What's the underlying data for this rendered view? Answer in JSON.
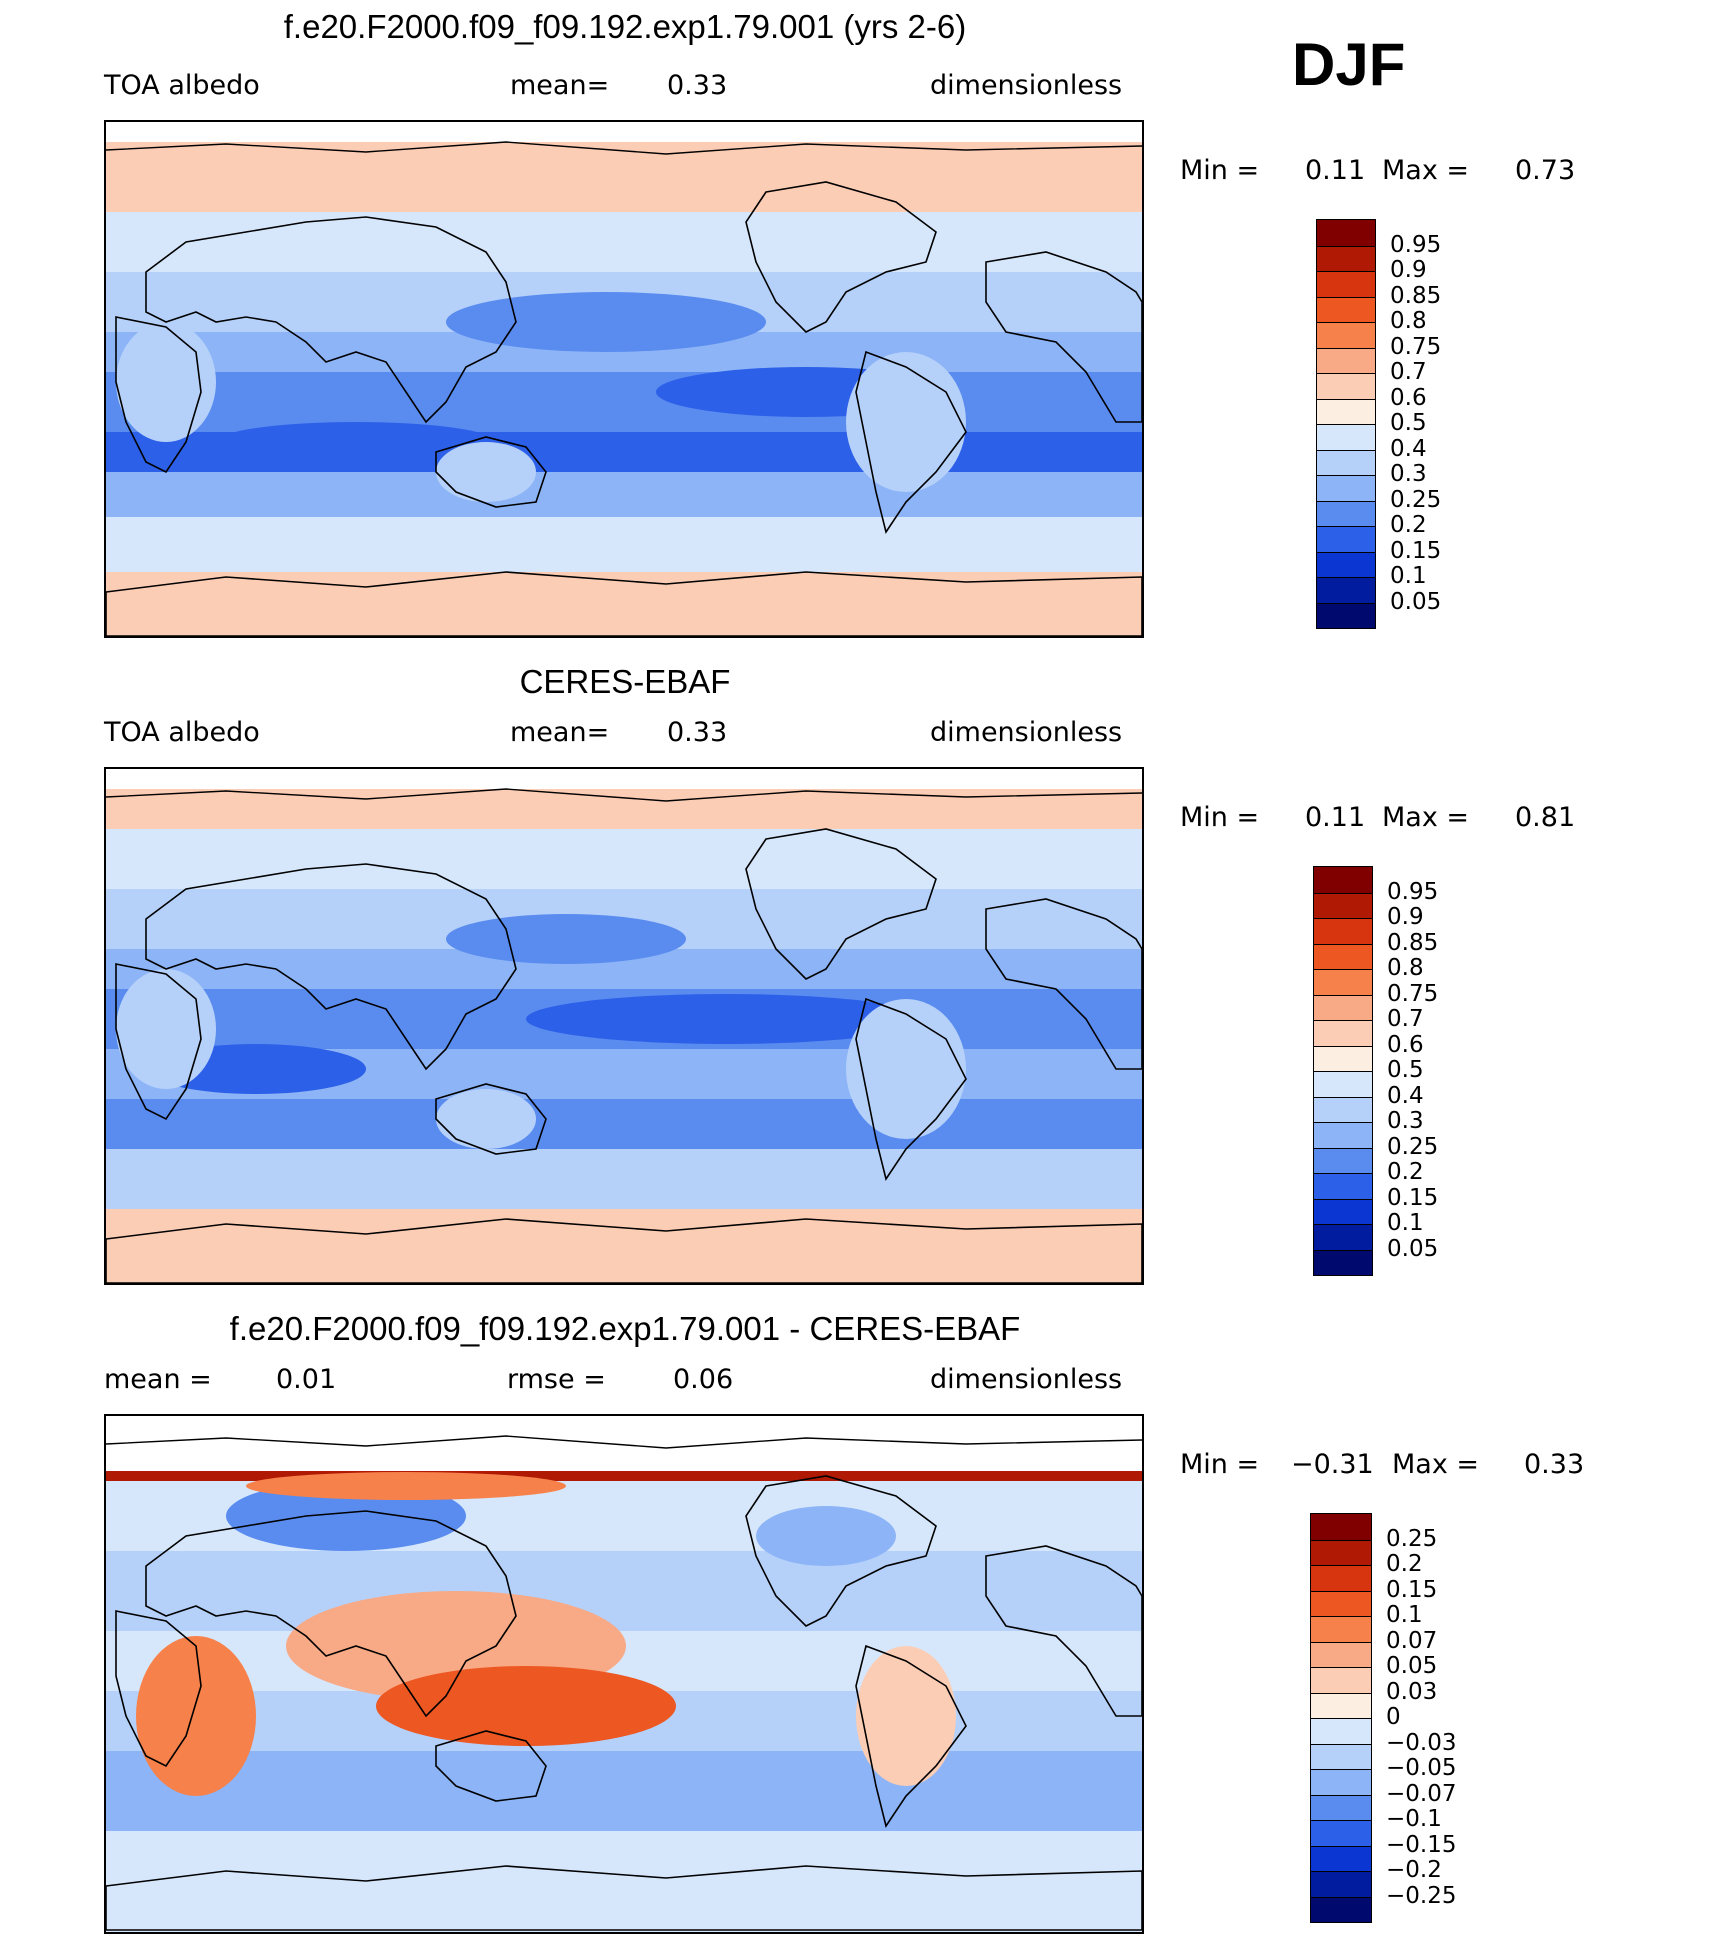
{
  "season": "DJF",
  "panels": [
    {
      "title": "f.e20.F2000.f09_f09.192.exp1.79.001 (yrs 2-6)",
      "left_label": "TOA albedo",
      "center_label": "mean=",
      "center_value": "0.33",
      "right_label": "dimensionless",
      "minmax": {
        "min_label": "Min =",
        "min_value": "0.11",
        "max_label": "Max =",
        "max_value": "0.73"
      },
      "colorbar": {
        "labels": [
          "0.95",
          "0.9",
          "0.85",
          "0.8",
          "0.75",
          "0.7",
          "0.6",
          "0.5",
          "0.4",
          "0.3",
          "0.25",
          "0.2",
          "0.15",
          "0.1",
          "0.05"
        ],
        "colors": [
          "#800000",
          "#b01a05",
          "#d63510",
          "#ec5722",
          "#f7814a",
          "#f8a985",
          "#fccdb5",
          "#fdeee2",
          "#d6e7fb",
          "#b5d1fa",
          "#8cb4f6",
          "#5a8cf0",
          "#2d60e8",
          "#0c36d1",
          "#021c9f",
          "#000a6e"
        ]
      },
      "map": {
        "type": "albedo_model"
      }
    },
    {
      "title": "CERES-EBAF",
      "left_label": "TOA albedo",
      "center_label": "mean=",
      "center_value": "0.33",
      "right_label": "dimensionless",
      "minmax": {
        "min_label": "Min =",
        "min_value": "0.11",
        "max_label": "Max =",
        "max_value": "0.81"
      },
      "colorbar": {
        "labels": [
          "0.95",
          "0.9",
          "0.85",
          "0.8",
          "0.75",
          "0.7",
          "0.6",
          "0.5",
          "0.4",
          "0.3",
          "0.25",
          "0.2",
          "0.15",
          "0.1",
          "0.05"
        ],
        "colors": [
          "#800000",
          "#b01a05",
          "#d63510",
          "#ec5722",
          "#f7814a",
          "#f8a985",
          "#fccdb5",
          "#fdeee2",
          "#d6e7fb",
          "#b5d1fa",
          "#8cb4f6",
          "#5a8cf0",
          "#2d60e8",
          "#0c36d1",
          "#021c9f",
          "#000a6e"
        ]
      },
      "map": {
        "type": "albedo_obs"
      }
    },
    {
      "title": "f.e20.F2000.f09_f09.192.exp1.79.001 - CERES-EBAF",
      "left_label": "mean =",
      "left_value": "0.01",
      "center_label": "rmse =",
      "center_value": "0.06",
      "right_label": "dimensionless",
      "minmax": {
        "min_label": "Min =",
        "min_value": "−0.31",
        "max_label": "Max =",
        "max_value": "0.33"
      },
      "colorbar": {
        "labels": [
          "0.25",
          "0.2",
          "0.15",
          "0.1",
          "0.07",
          "0.05",
          "0.03",
          "0",
          "−0.03",
          "−0.05",
          "−0.07",
          "−0.1",
          "−0.15",
          "−0.2",
          "−0.25"
        ],
        "colors": [
          "#800000",
          "#b01a05",
          "#d63510",
          "#ec5722",
          "#f7814a",
          "#f8a985",
          "#fccdb5",
          "#fdeee2",
          "#d6e7fb",
          "#b5d1fa",
          "#8cb4f6",
          "#5a8cf0",
          "#2d60e8",
          "#0c36d1",
          "#021c9f",
          "#000a6e"
        ]
      },
      "map": {
        "type": "difference"
      }
    }
  ]
}
